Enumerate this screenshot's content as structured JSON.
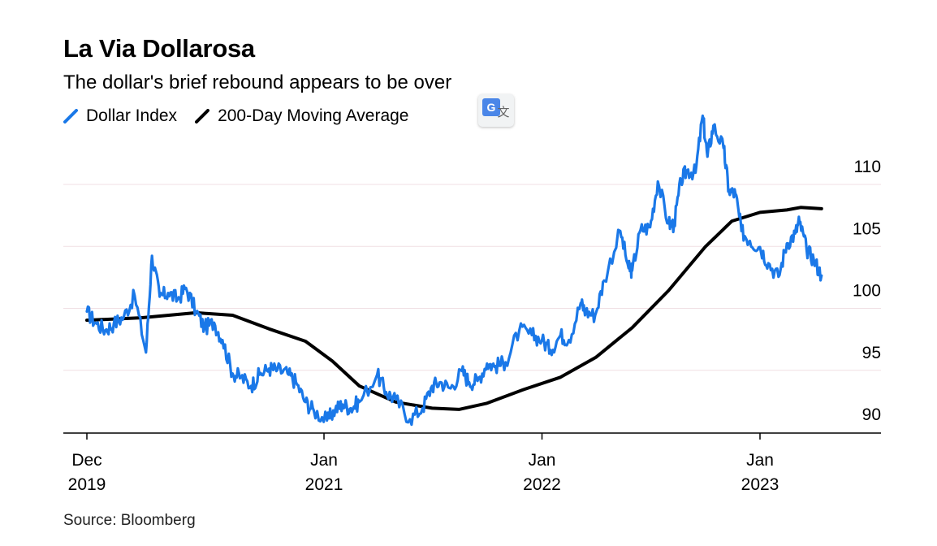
{
  "chart_data": {
    "type": "line",
    "title": "La Via Dollarosa",
    "subtitle": "The dollar's brief rebound appears to be over",
    "source": "Source: Bloomberg",
    "xlabel": "",
    "ylabel": "",
    "ylim": [
      89,
      113
    ],
    "xlim": [
      "2019-12-01",
      "2023-05-15"
    ],
    "grid": true,
    "legend_position": "top-left",
    "y_ticks": [
      90,
      95,
      100,
      105,
      110
    ],
    "x_ticks": [
      {
        "date": "2019-12-01",
        "line1": "Dec",
        "line2": "2019"
      },
      {
        "date": "2021-01-01",
        "line1": "Jan",
        "line2": "2021"
      },
      {
        "date": "2022-01-01",
        "line1": "Jan",
        "line2": "2022"
      },
      {
        "date": "2023-01-01",
        "line1": "Jan",
        "line2": "2023"
      }
    ],
    "series": [
      {
        "name": "Dollar Index",
        "color": "#1a78e8",
        "points": [
          [
            "2019-12-01",
            98.3
          ],
          [
            "2019-12-15",
            97.4
          ],
          [
            "2020-01-01",
            96.8
          ],
          [
            "2020-01-15",
            97.3
          ],
          [
            "2020-02-01",
            97.9
          ],
          [
            "2020-02-19",
            99.6
          ],
          [
            "2020-03-09",
            95.0
          ],
          [
            "2020-03-19",
            102.8
          ],
          [
            "2020-04-01",
            99.5
          ],
          [
            "2020-04-15",
            99.8
          ],
          [
            "2020-05-01",
            99.3
          ],
          [
            "2020-05-15",
            100.2
          ],
          [
            "2020-06-01",
            98.3
          ],
          [
            "2020-06-15",
            97.0
          ],
          [
            "2020-07-01",
            97.4
          ],
          [
            "2020-07-15",
            96.0
          ],
          [
            "2020-08-01",
            93.3
          ],
          [
            "2020-08-15",
            93.0
          ],
          [
            "2020-09-01",
            92.3
          ],
          [
            "2020-09-15",
            93.2
          ],
          [
            "2020-10-01",
            93.7
          ],
          [
            "2020-10-15",
            93.6
          ],
          [
            "2020-11-01",
            93.3
          ],
          [
            "2020-11-15",
            92.6
          ],
          [
            "2020-12-01",
            91.0
          ],
          [
            "2020-12-15",
            90.3
          ],
          [
            "2021-01-06",
            89.5
          ],
          [
            "2021-01-20",
            90.4
          ],
          [
            "2021-02-01",
            90.8
          ],
          [
            "2021-02-15",
            90.5
          ],
          [
            "2021-03-01",
            91.0
          ],
          [
            "2021-03-31",
            93.2
          ],
          [
            "2021-04-15",
            91.8
          ],
          [
            "2021-05-01",
            91.2
          ],
          [
            "2021-05-25",
            89.6
          ],
          [
            "2021-06-15",
            90.5
          ],
          [
            "2021-07-01",
            92.3
          ],
          [
            "2021-07-15",
            92.6
          ],
          [
            "2021-08-01",
            92.1
          ],
          [
            "2021-08-20",
            93.5
          ],
          [
            "2021-09-01",
            92.6
          ],
          [
            "2021-09-15",
            92.7
          ],
          [
            "2021-10-01",
            94.1
          ],
          [
            "2021-10-15",
            93.9
          ],
          [
            "2021-11-01",
            94.2
          ],
          [
            "2021-11-24",
            96.8
          ],
          [
            "2021-12-15",
            96.4
          ],
          [
            "2022-01-01",
            96.0
          ],
          [
            "2022-01-15",
            95.2
          ],
          [
            "2022-02-01",
            96.4
          ],
          [
            "2022-02-15",
            96.0
          ],
          [
            "2022-03-07",
            99.0
          ],
          [
            "2022-03-15",
            98.3
          ],
          [
            "2022-03-31",
            98.0
          ],
          [
            "2022-04-15",
            100.8
          ],
          [
            "2022-05-12",
            104.8
          ],
          [
            "2022-05-26",
            101.8
          ],
          [
            "2022-06-01",
            101.6
          ],
          [
            "2022-06-15",
            104.9
          ],
          [
            "2022-07-01",
            105.1
          ],
          [
            "2022-07-14",
            108.8
          ],
          [
            "2022-08-01",
            105.4
          ],
          [
            "2022-08-10",
            105.3
          ],
          [
            "2022-08-22",
            108.9
          ],
          [
            "2022-09-01",
            109.7
          ],
          [
            "2022-09-15",
            109.5
          ],
          [
            "2022-09-27",
            114.1
          ],
          [
            "2022-10-05",
            110.8
          ],
          [
            "2022-10-15",
            113.3
          ],
          [
            "2022-11-01",
            111.5
          ],
          [
            "2022-11-10",
            108.0
          ],
          [
            "2022-11-21",
            107.8
          ],
          [
            "2022-12-01",
            104.8
          ],
          [
            "2022-12-15",
            104.0
          ],
          [
            "2023-01-01",
            103.5
          ],
          [
            "2023-01-15",
            102.2
          ],
          [
            "2023-02-01",
            101.1
          ],
          [
            "2023-02-15",
            103.8
          ],
          [
            "2023-03-01",
            104.6
          ],
          [
            "2023-03-08",
            105.6
          ],
          [
            "2023-03-20",
            103.3
          ],
          [
            "2023-04-01",
            102.5
          ],
          [
            "2023-04-14",
            101.2
          ]
        ]
      },
      {
        "name": "200-Day Moving Average",
        "color": "#000000",
        "points": [
          [
            "2019-12-01",
            97.6
          ],
          [
            "2020-03-01",
            97.8
          ],
          [
            "2020-06-01",
            98.2
          ],
          [
            "2020-08-01",
            98.0
          ],
          [
            "2020-10-01",
            96.9
          ],
          [
            "2020-12-01",
            95.9
          ],
          [
            "2021-01-15",
            94.3
          ],
          [
            "2021-03-01",
            92.3
          ],
          [
            "2021-05-01",
            91.0
          ],
          [
            "2021-07-01",
            90.5
          ],
          [
            "2021-08-15",
            90.4
          ],
          [
            "2021-10-01",
            90.9
          ],
          [
            "2021-12-01",
            92.0
          ],
          [
            "2022-02-01",
            93.0
          ],
          [
            "2022-04-01",
            94.6
          ],
          [
            "2022-06-01",
            97.0
          ],
          [
            "2022-08-01",
            100.0
          ],
          [
            "2022-10-01",
            103.5
          ],
          [
            "2022-11-15",
            105.6
          ],
          [
            "2023-01-01",
            106.3
          ],
          [
            "2023-02-15",
            106.5
          ],
          [
            "2023-03-10",
            106.7
          ],
          [
            "2023-04-14",
            106.6
          ]
        ]
      }
    ]
  }
}
